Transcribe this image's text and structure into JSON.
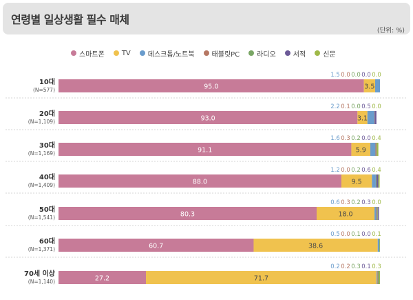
{
  "header": {
    "title": "연령별 일상생활 필수 매체",
    "unit": "(단위: %)"
  },
  "colors": {
    "smartphone": "#c77b98",
    "tv": "#f0c24e",
    "desktop": "#6a9ccc",
    "tablet": "#b67864",
    "radio": "#7aa665",
    "book": "#6c5a98",
    "newspaper": "#9fb948"
  },
  "chart_data": {
    "type": "bar",
    "orientation": "horizontal",
    "stacked": true,
    "xlim": [
      0,
      100
    ],
    "categories": [
      {
        "label": "10대",
        "n": "(N=577)"
      },
      {
        "label": "20대",
        "n": "(N=1,109)"
      },
      {
        "label": "30대",
        "n": "(N=1,169)"
      },
      {
        "label": "40대",
        "n": "(N=1,409)"
      },
      {
        "label": "50대",
        "n": "(N=1,541)"
      },
      {
        "label": "60대",
        "n": "(N=1,371)"
      },
      {
        "label": "70세 이상",
        "n": "(N=1,140)"
      }
    ],
    "series": [
      {
        "name": "스마트폰",
        "color_key": "smartphone",
        "values": [
          95.0,
          93.0,
          91.1,
          88.0,
          80.3,
          60.7,
          27.2
        ],
        "labels": [
          "95.0",
          "93.0",
          "91.1",
          "88.0",
          "80.3",
          "60.7",
          "27.2"
        ]
      },
      {
        "name": "TV",
        "color_key": "tv",
        "values": [
          3.5,
          3.1,
          5.9,
          9.5,
          18.0,
          38.6,
          71.7
        ],
        "labels": [
          "3.5",
          "3.1",
          "5.9",
          "9.5",
          "18.0",
          "38.6",
          "71.7"
        ]
      },
      {
        "name": "데스크톱/노트북",
        "color_key": "desktop",
        "values": [
          1.5,
          2.2,
          1.6,
          1.2,
          0.6,
          0.5,
          0.2
        ],
        "labels": [
          "1.5",
          "2.2",
          "1.6",
          "1.2",
          "0.6",
          "0.5",
          "0.2"
        ]
      },
      {
        "name": "태블릿PC",
        "color_key": "tablet",
        "values": [
          0.0,
          0.1,
          0.3,
          0.0,
          0.3,
          0.0,
          0.2
        ],
        "labels": [
          "0.0",
          "0.1",
          "0.3",
          "0.0",
          "0.3",
          "0.0",
          "0.2"
        ]
      },
      {
        "name": "라디오",
        "color_key": "radio",
        "values": [
          0.0,
          0.0,
          0.2,
          0.2,
          0.2,
          0.1,
          0.3
        ],
        "labels": [
          "0.0",
          "0.0",
          "0.2",
          "0.2",
          "0.2",
          "0.1",
          "0.3"
        ]
      },
      {
        "name": "서적",
        "color_key": "book",
        "values": [
          0.0,
          0.5,
          0.0,
          0.6,
          0.3,
          0.0,
          0.1
        ],
        "labels": [
          "0.0",
          "0.5",
          "0.0",
          "0.6",
          "0.3",
          "0.0",
          "0.1"
        ]
      },
      {
        "name": "신문",
        "color_key": "newspaper",
        "values": [
          0.0,
          0.0,
          0.4,
          0.4,
          0.0,
          0.1,
          0.3
        ],
        "labels": [
          "0.0",
          "0.0",
          "0.4",
          "0.4",
          "0.0",
          "0.1",
          "0.3"
        ]
      }
    ]
  }
}
